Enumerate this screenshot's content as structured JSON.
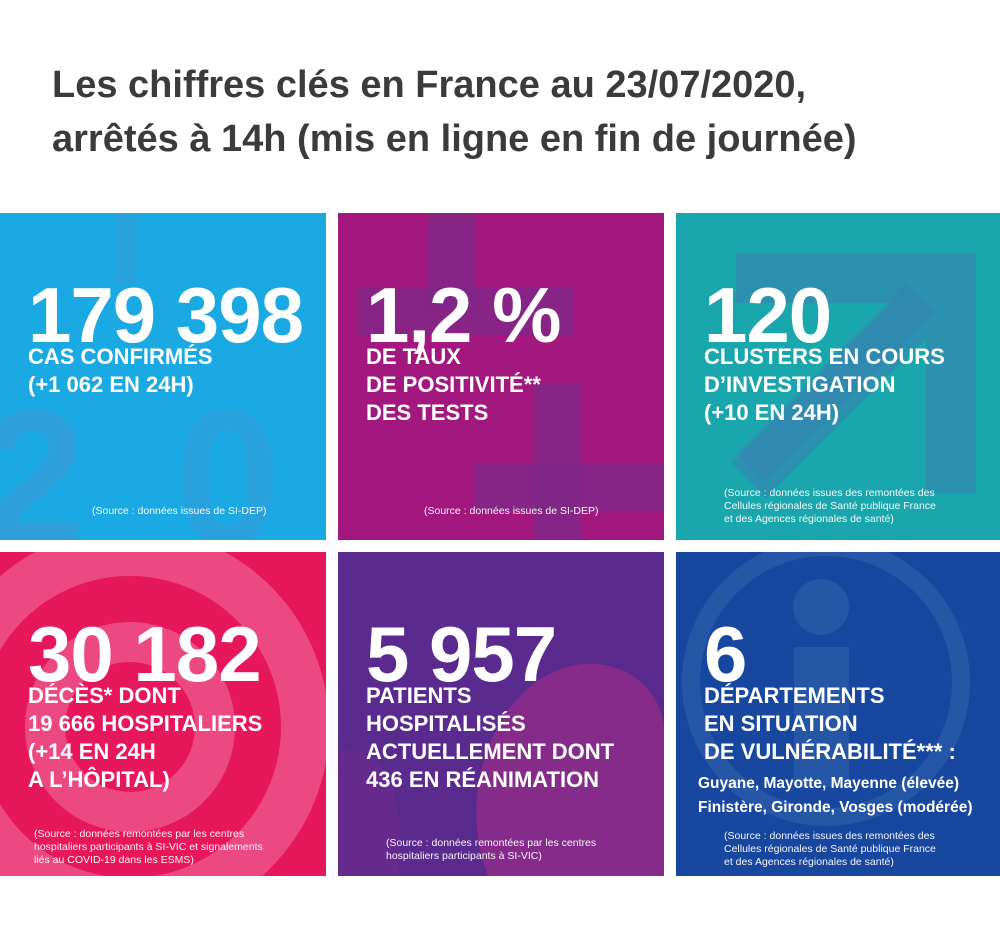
{
  "header": {
    "title_line1": "Les chiffres clés en France au 23/07/2020,",
    "title_line2": "arrêtés à 14h (mis en ligne en fin de journée)"
  },
  "tiles": [
    {
      "color": "#1aa9e2",
      "value": "179 398",
      "label": [
        "CAS CONFIRMÉS",
        "(+1 062 EN 24H)"
      ],
      "source": [
        "(Source : données issues de SI-DEP)"
      ]
    },
    {
      "color": "#a3187f",
      "value": "1,2 %",
      "label": [
        "DE TAUX",
        "DE POSITIVITÉ**",
        "DES TESTS"
      ],
      "source": [
        "(Source : données issues de SI-DEP)"
      ]
    },
    {
      "color": "#19a7ad",
      "value": "120",
      "label": [
        "CLUSTERS EN COURS",
        "D’INVESTIGATION",
        "(+10 EN 24H)"
      ],
      "source": [
        "(Source : données issues des remontées des",
        "Cellules régionales de Santé publique France",
        "et des Agences régionales de santé)"
      ]
    },
    {
      "color": "#e6175a",
      "value": "30 182",
      "label": [
        "DÉCÈS* DONT",
        "19 666 HOSPITALIERS",
        "(+14 EN 24H",
        "A L’HÔPITAL)"
      ],
      "source": [
        "(Source : données remontées par les centres",
        "hospitaliers participants à SI-VIC et signalements",
        "liés au COVID-19 dans les ESMS)"
      ]
    },
    {
      "color": "#5a2a8e",
      "value": "5 957",
      "label": [
        "PATIENTS",
        "HOSPITALISÉS",
        "ACTUELLEMENT DONT",
        "436 EN RÉANIMATION"
      ],
      "source": [
        "(Source : données remontées par les centres",
        "hospitaliers participants à SI-VIC)"
      ]
    },
    {
      "color": "#17479e",
      "value": "6",
      "label": [
        "DÉPARTEMENTS",
        "EN SITUATION",
        "DE VULNÉRABILITÉ*** :"
      ],
      "extra": [
        "Guyane, Mayotte, Mayenne (élevée)",
        "Finistère, Gironde, Vosges (modérée)"
      ],
      "source": [
        "(Source : données issues des remontées des",
        "Cellules régionales de Santé publique France",
        "et des Agences régionales de santé)"
      ]
    }
  ]
}
